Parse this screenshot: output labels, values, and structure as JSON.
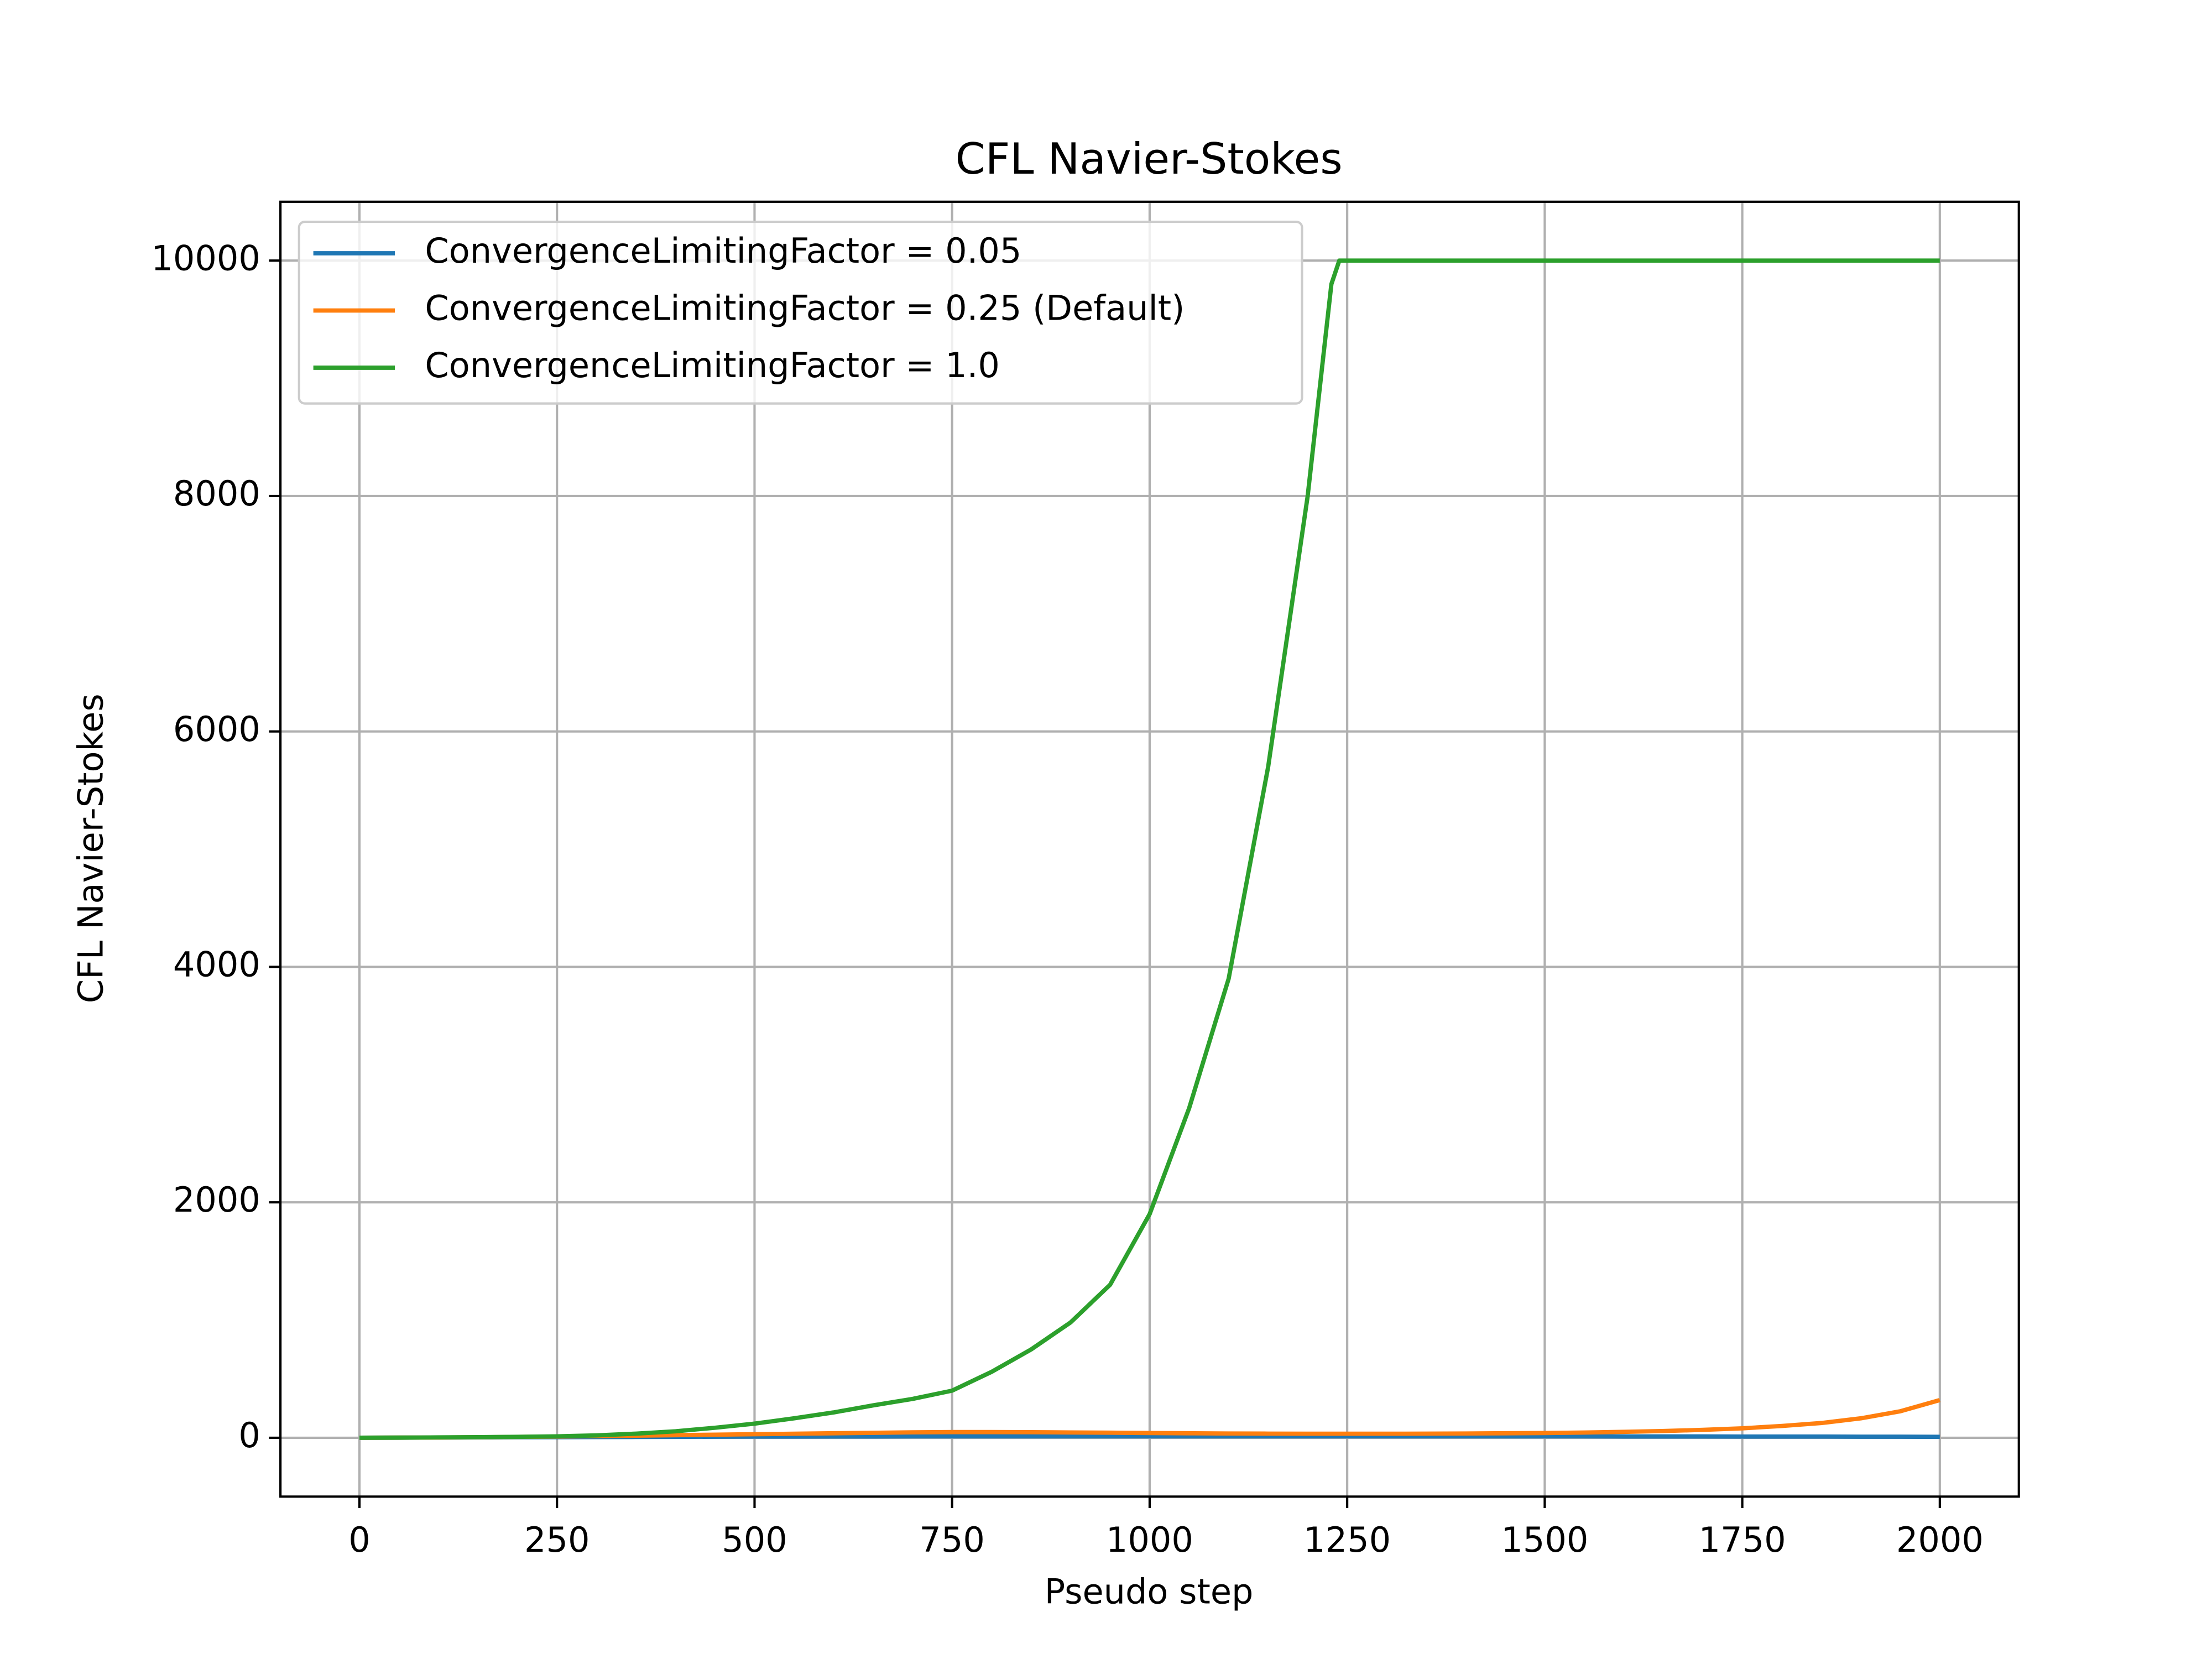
{
  "chart_data": {
    "type": "line",
    "title": "CFL Navier-Stokes",
    "xlabel": "Pseudo step",
    "ylabel": "CFL Navier-Stokes",
    "x": [
      0,
      50,
      100,
      150,
      200,
      250,
      300,
      350,
      400,
      450,
      500,
      550,
      600,
      650,
      700,
      750,
      800,
      850,
      900,
      950,
      1000,
      1050,
      1100,
      1150,
      1200,
      1230,
      1240,
      1250,
      1300,
      1350,
      1400,
      1450,
      1500,
      1550,
      1600,
      1650,
      1700,
      1750,
      1800,
      1850,
      1900,
      1950,
      2000
    ],
    "series": [
      {
        "name": "ConvergenceLimitingFactor = 0.05",
        "color": "#1f77b4",
        "values": [
          0,
          1,
          2,
          3,
          4,
          5,
          6,
          7,
          8,
          9,
          10,
          10,
          11,
          11,
          12,
          12,
          12,
          12,
          12,
          12,
          12,
          12,
          12,
          12,
          12,
          12,
          12,
          12,
          12,
          12,
          12,
          12,
          12,
          12,
          11,
          11,
          11,
          10,
          10,
          10,
          9,
          9,
          8
        ]
      },
      {
        "name": "ConvergenceLimitingFactor = 0.25 (Default)",
        "color": "#ff7f0e",
        "values": [
          0,
          1,
          2,
          4,
          7,
          10,
          14,
          18,
          22,
          26,
          30,
          34,
          38,
          42,
          46,
          48,
          48,
          47,
          45,
          43,
          40,
          38,
          36,
          35,
          34,
          34,
          34,
          34,
          34,
          35,
          36,
          38,
          40,
          44,
          50,
          57,
          67,
          80,
          100,
          125,
          165,
          225,
          320
        ]
      },
      {
        "name": "ConvergenceLimitingFactor = 1.0",
        "color": "#2ca02c",
        "values": [
          0,
          1,
          3,
          5,
          8,
          12,
          20,
          35,
          55,
          85,
          120,
          165,
          215,
          275,
          330,
          400,
          560,
          750,
          980,
          1300,
          1900,
          2800,
          3900,
          5700,
          8000,
          9800,
          10000,
          10000,
          10000,
          10000,
          10000,
          10000,
          10000,
          10000,
          10000,
          10000,
          10000,
          10000,
          10000,
          10000,
          10000,
          10000,
          10000
        ]
      }
    ],
    "xlim": [
      -100,
      2100
    ],
    "ylim": [
      -500,
      10500
    ],
    "xticks": [
      0,
      250,
      500,
      750,
      1000,
      1250,
      1500,
      1750,
      2000
    ],
    "yticks": [
      0,
      2000,
      4000,
      6000,
      8000,
      10000
    ],
    "grid": true,
    "legend": "upper left"
  }
}
